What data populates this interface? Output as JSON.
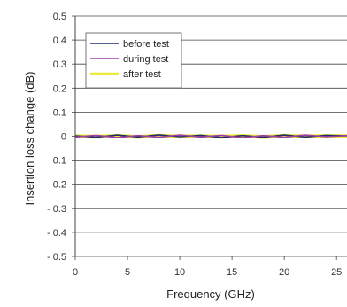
{
  "chart_data": {
    "type": "line",
    "xlabel": "Frequency (GHz)",
    "ylabel": "Insertion loss change (dB)",
    "xlim": [
      0,
      26
    ],
    "ylim": [
      -0.5,
      0.5
    ],
    "x_ticks": [
      0,
      5,
      10,
      15,
      20,
      25
    ],
    "y_ticks": [
      0.5,
      0.4,
      0.3,
      0.2,
      0.1,
      0,
      -0.1,
      -0.2,
      -0.3,
      -0.4,
      -0.5
    ],
    "x_tick_labels": [
      "0",
      "5",
      "10",
      "15",
      "20",
      "25"
    ],
    "y_tick_labels": [
      "0.5",
      "0.4",
      "0.3",
      "0.2",
      "0.1",
      "0",
      "- 0.1",
      "- 0.2",
      "- 0.3",
      "- 0.4",
      "- 0.5"
    ],
    "grid": "horizontal",
    "legend_position": "top-left",
    "series": [
      {
        "name": "before test",
        "color": "#1f2a6b",
        "x": [
          0,
          2,
          4,
          6,
          8,
          10,
          12,
          14,
          16,
          18,
          20,
          22,
          24,
          26
        ],
        "y": [
          0.002,
          -0.004,
          0.005,
          -0.003,
          0.006,
          -0.002,
          0.004,
          -0.005,
          0.003,
          -0.004,
          0.005,
          -0.003,
          0.004,
          0.002
        ]
      },
      {
        "name": "during test",
        "color": "#9b3fa6",
        "x": [
          0,
          2,
          4,
          6,
          8,
          10,
          12,
          14,
          16,
          18,
          20,
          22,
          24,
          26
        ],
        "y": [
          -0.003,
          0.004,
          -0.005,
          0.003,
          -0.004,
          0.005,
          -0.003,
          0.004,
          -0.006,
          0.003,
          -0.004,
          0.005,
          -0.002,
          0.003
        ]
      },
      {
        "name": "after test",
        "color": "#f0e93a",
        "x": [
          0,
          2,
          4,
          6,
          8,
          10,
          12,
          14,
          16,
          18,
          20,
          22,
          24,
          26
        ],
        "y": [
          0,
          -0.002,
          0.001,
          -0.003,
          0.002,
          -0.001,
          0,
          -0.002,
          0.001,
          -0.003,
          0.002,
          -0.001,
          0.001,
          0
        ]
      }
    ]
  }
}
